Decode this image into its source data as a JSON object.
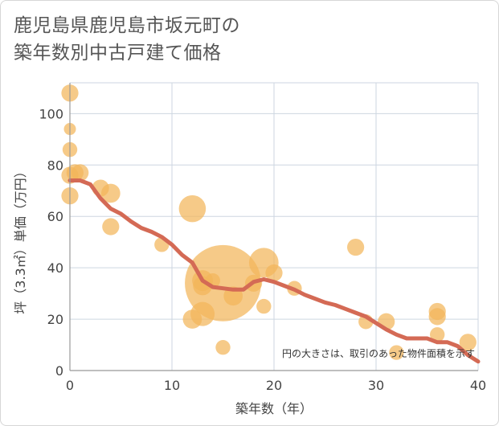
{
  "chart_data": {
    "type": "scatter",
    "title_line1": "鹿児島県鹿児島市坂元町の",
    "title_line2": "築年数別中古戸建て価格",
    "xlabel": "築年数（年）",
    "ylabel": "坪（3.3㎡）単価（万円）",
    "xlim": [
      0,
      40
    ],
    "ylim": [
      0,
      112
    ],
    "x_ticks": [
      0,
      10,
      20,
      30,
      40
    ],
    "y_ticks": [
      0,
      20,
      40,
      60,
      80,
      100
    ],
    "grid": true,
    "note": "円の大きさは、取引のあった物件面積を示す",
    "colors": {
      "bubble": "#f2b55a",
      "trend": "#d46a55",
      "grid": "#cdd6e0",
      "axis": "#999999"
    },
    "bubbles": [
      {
        "x": 0,
        "y": 108,
        "s": 2
      },
      {
        "x": 0,
        "y": 94,
        "s": 1
      },
      {
        "x": 0,
        "y": 86,
        "s": 1.5
      },
      {
        "x": 0,
        "y": 76,
        "s": 2
      },
      {
        "x": 0,
        "y": 68,
        "s": 2
      },
      {
        "x": 0.5,
        "y": 77,
        "s": 2
      },
      {
        "x": 1,
        "y": 77,
        "s": 2
      },
      {
        "x": 3,
        "y": 71,
        "s": 2
      },
      {
        "x": 4,
        "y": 69,
        "s": 2.5
      },
      {
        "x": 4,
        "y": 56,
        "s": 2
      },
      {
        "x": 9,
        "y": 49,
        "s": 1.5
      },
      {
        "x": 12,
        "y": 63,
        "s": 5
      },
      {
        "x": 12,
        "y": 20,
        "s": 2.5
      },
      {
        "x": 13,
        "y": 22,
        "s": 4
      },
      {
        "x": 13,
        "y": 33,
        "s": 2.5
      },
      {
        "x": 13,
        "y": 35,
        "s": 3
      },
      {
        "x": 14,
        "y": 35,
        "s": 1.5
      },
      {
        "x": 15,
        "y": 34,
        "s": 40
      },
      {
        "x": 15,
        "y": 9,
        "s": 1.5
      },
      {
        "x": 16,
        "y": 29,
        "s": 2.5
      },
      {
        "x": 18,
        "y": 34,
        "s": 2
      },
      {
        "x": 19,
        "y": 42,
        "s": 6
      },
      {
        "x": 19,
        "y": 25,
        "s": 1.5
      },
      {
        "x": 20,
        "y": 38,
        "s": 2
      },
      {
        "x": 22,
        "y": 32,
        "s": 1.5
      },
      {
        "x": 28,
        "y": 48,
        "s": 2
      },
      {
        "x": 29,
        "y": 19,
        "s": 1.5
      },
      {
        "x": 31,
        "y": 19,
        "s": 2
      },
      {
        "x": 32,
        "y": 7,
        "s": 1.5
      },
      {
        "x": 36,
        "y": 23,
        "s": 2
      },
      {
        "x": 36,
        "y": 21,
        "s": 2
      },
      {
        "x": 36,
        "y": 14,
        "s": 1.5
      },
      {
        "x": 39,
        "y": 11,
        "s": 2
      }
    ],
    "trend": {
      "x": [
        0,
        1,
        2,
        3,
        4,
        5,
        6,
        7,
        8,
        9,
        10,
        11,
        12,
        13,
        14,
        15,
        16,
        17,
        18,
        19,
        20,
        21,
        22,
        23,
        24,
        25,
        26,
        27,
        28,
        29,
        30,
        31,
        32,
        33,
        34,
        35,
        36,
        37,
        38,
        39,
        40
      ],
      "y": [
        74,
        74,
        72.5,
        67,
        63,
        61,
        58,
        55.5,
        54,
        52,
        49,
        45,
        42,
        35,
        32.5,
        32,
        31.5,
        31.5,
        34.5,
        35.5,
        34.5,
        33,
        31.5,
        29.5,
        28,
        26.5,
        25.5,
        24,
        22.5,
        21,
        18.5,
        16,
        14,
        12.5,
        12.5,
        12.5,
        11,
        11,
        9.5,
        6,
        3.5
      ]
    }
  }
}
